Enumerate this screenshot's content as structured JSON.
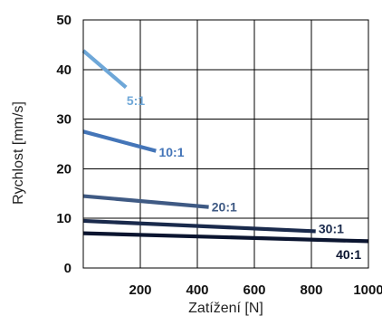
{
  "chart_data": {
    "type": "line",
    "xlabel": "Zatížení [N]",
    "ylabel": "Rychlost [mm/s]",
    "xlim": [
      0,
      1000
    ],
    "ylim": [
      0,
      50
    ],
    "x_ticks": [
      {
        "value": 200,
        "label": "200"
      },
      {
        "value": 400,
        "label": "400"
      },
      {
        "value": 600,
        "label": "600"
      },
      {
        "value": 800,
        "label": "800"
      },
      {
        "value": 1000,
        "label": "1000"
      }
    ],
    "y_ticks": [
      {
        "value": 0,
        "label": "0"
      },
      {
        "value": 10,
        "label": "10"
      },
      {
        "value": 20,
        "label": "20"
      },
      {
        "value": 30,
        "label": "30"
      },
      {
        "value": 40,
        "label": "40"
      },
      {
        "value": 50,
        "label": "50"
      }
    ],
    "grid": true,
    "series": [
      {
        "name": "5:1",
        "color": "#6ea7d8",
        "x": [
          0,
          150
        ],
        "y": [
          43.8,
          36.4
        ],
        "label_at": [
          152,
          33.8
        ]
      },
      {
        "name": "10:1",
        "color": "#4475b8",
        "x": [
          0,
          255
        ],
        "y": [
          27.5,
          23.6
        ],
        "label_at": [
          265,
          23.4
        ]
      },
      {
        "name": "20:1",
        "color": "#3f5a84",
        "x": [
          0,
          440
        ],
        "y": [
          14.5,
          12.3
        ],
        "label_at": [
          450,
          12.3
        ]
      },
      {
        "name": "30:1",
        "color": "#1a2a4c",
        "x": [
          0,
          815
        ],
        "y": [
          9.5,
          7.4
        ],
        "label_at": [
          825,
          7.9
        ]
      },
      {
        "name": "40:1",
        "color": "#0b1530",
        "x": [
          0,
          1000
        ],
        "y": [
          7.0,
          5.4
        ],
        "label_at": [
          975,
          2.7
        ]
      }
    ]
  }
}
